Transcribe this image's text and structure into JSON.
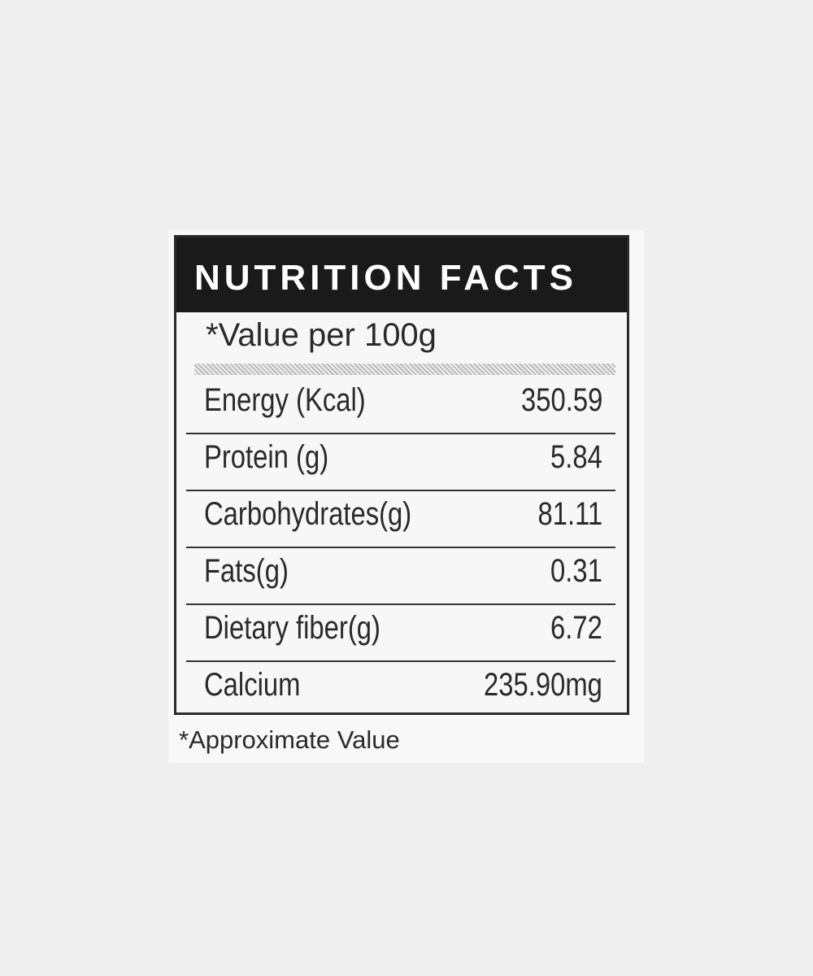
{
  "label": {
    "title": "NUTRITION FACTS",
    "serving": "*Value per 100g",
    "rows": [
      {
        "name": "Energy (Kcal)",
        "value": "350.59"
      },
      {
        "name": "Protein (g)",
        "value": "5.84"
      },
      {
        "name": "Carbohydrates(g)",
        "value": "81.11"
      },
      {
        "name": "Fats(g)",
        "value": "0.31"
      },
      {
        "name": "Dietary fiber(g)",
        "value": "6.72"
      },
      {
        "name": "Calcium",
        "value": "235.90mg"
      }
    ],
    "footnote": "*Approximate Value"
  }
}
